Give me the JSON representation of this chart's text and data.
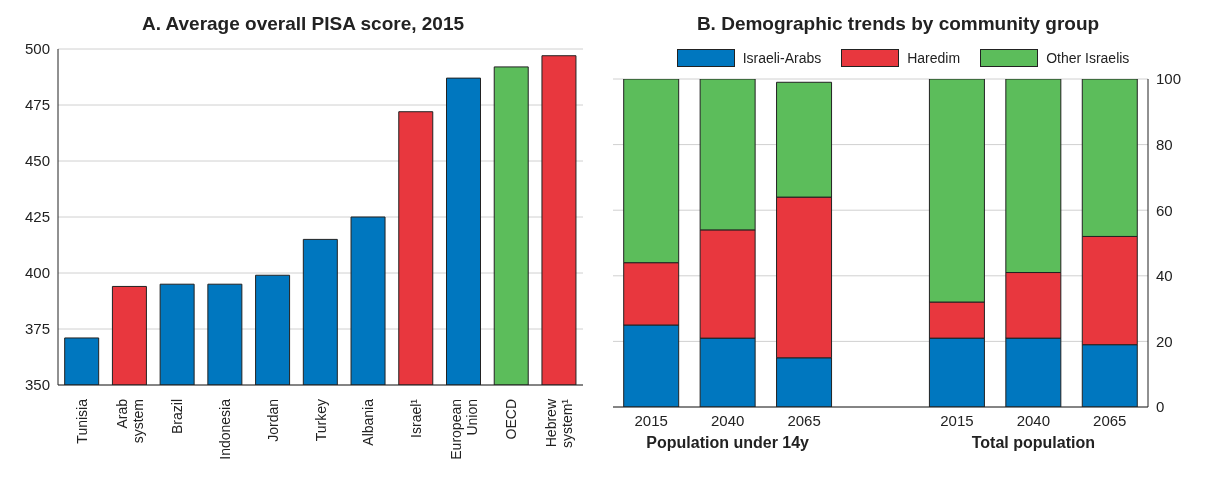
{
  "chart_data": [
    {
      "type": "bar",
      "title": "A. Average overall PISA score, 2015",
      "categories": [
        "Tunisia",
        "Arab system",
        "Brazil",
        "Indonesia",
        "Jordan",
        "Turkey",
        "Albania",
        "Israel¹",
        "European Union",
        "OECD",
        "Hebrew system¹"
      ],
      "values": [
        371,
        394,
        395,
        395,
        399,
        415,
        425,
        472,
        487,
        492,
        497
      ],
      "colors": [
        "#0077bf",
        "#e8373e",
        "#0077bf",
        "#0077bf",
        "#0077bf",
        "#0077bf",
        "#0077bf",
        "#e8373e",
        "#0077bf",
        "#5cbd5b",
        "#e8373e"
      ],
      "ylim": [
        350,
        500
      ],
      "yticks": [
        350,
        375,
        400,
        425,
        450,
        475,
        500
      ],
      "grid": "y"
    },
    {
      "type": "bar",
      "title": "B. Demographic trends by community group",
      "stacked": true,
      "legend": "top",
      "grid": "y",
      "categories": [
        "2015",
        "2040",
        "2065",
        null,
        "2015",
        "2040",
        "2065"
      ],
      "series": [
        {
          "name": "Israeli-Arabs",
          "color": "#0077bf",
          "values": [
            25,
            21,
            15,
            null,
            21,
            21,
            19
          ]
        },
        {
          "name": "Haredim",
          "color": "#e8373e",
          "values": [
            19,
            33,
            49,
            null,
            11,
            20,
            33
          ]
        },
        {
          "name": "Other Israelis",
          "color": "#5cbd5b",
          "values": [
            56,
            46,
            35,
            null,
            68,
            59,
            48
          ]
        }
      ],
      "ylim": [
        0,
        100
      ],
      "yticks": [
        0,
        20,
        40,
        60,
        80,
        100
      ],
      "annotations": [
        "Population under 14y",
        "Total population"
      ]
    }
  ]
}
